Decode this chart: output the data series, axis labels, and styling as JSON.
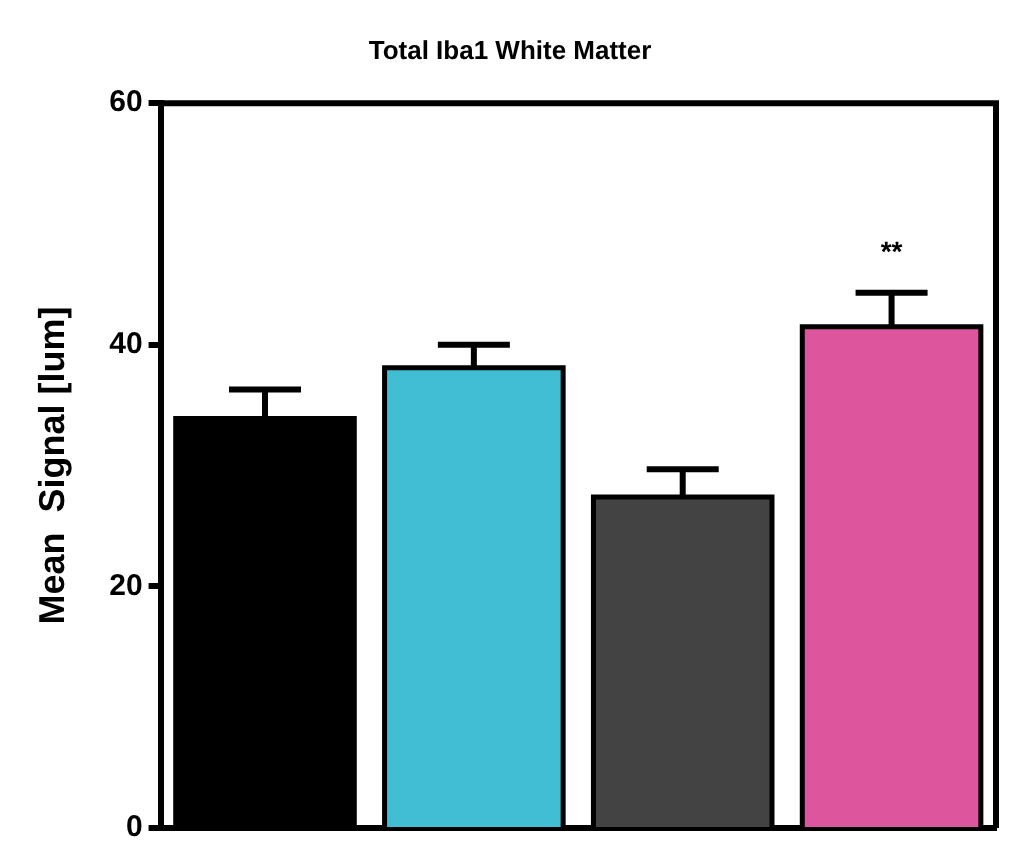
{
  "chart_data": {
    "type": "bar",
    "title": "Total Iba1 White Matter",
    "ylabel": "Mean  Signal [lum]",
    "categories": [
      null,
      null,
      null,
      null
    ],
    "values": [
      33.9,
      38.1,
      27.4,
      41.5
    ],
    "colors": [
      "#000000",
      "#41bed3",
      "#434343",
      "#dd559c"
    ],
    "errors": [
      2.4,
      1.9,
      2.3,
      2.8
    ],
    "ylim": [
      0,
      60
    ],
    "yticks": [
      0,
      20,
      40,
      60
    ],
    "grid": false,
    "legend": false,
    "tick_labels": "y",
    "annotations": [
      "**"
    ]
  }
}
